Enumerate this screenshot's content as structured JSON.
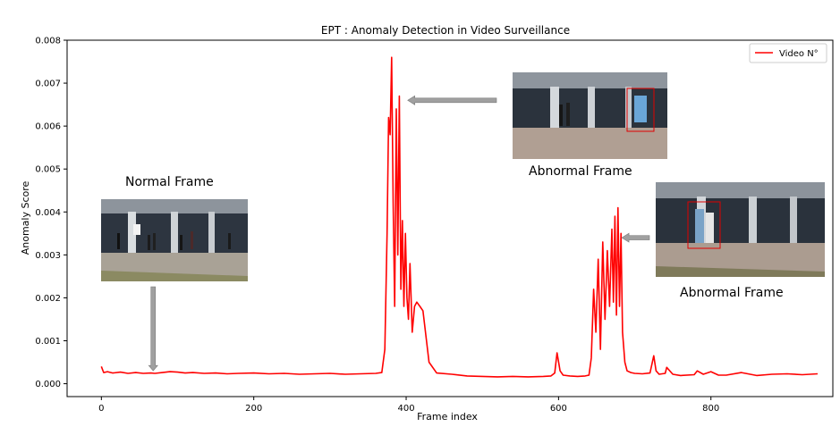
{
  "chart_data": {
    "type": "line",
    "title": "EPT : Anomaly Detection in Video Surveillance",
    "xlabel": "Frame index",
    "ylabel": "Anomaly Score",
    "xlim": [
      -45,
      960
    ],
    "ylim": [
      -0.0003,
      0.008
    ],
    "xticks": [
      0,
      200,
      400,
      600,
      800
    ],
    "yticks": [
      0.0,
      0.001,
      0.002,
      0.003,
      0.004,
      0.005,
      0.006,
      0.007,
      0.008
    ],
    "xtick_labels": [
      "0",
      "200",
      "400",
      "600",
      "800"
    ],
    "ytick_labels": [
      "0.000",
      "0.001",
      "0.002",
      "0.003",
      "0.004",
      "0.005",
      "0.006",
      "0.007",
      "0.008"
    ],
    "grid": false,
    "legend": "top-right",
    "colors": {
      "series": "#ff0000",
      "arrow": "#a0a0a0"
    },
    "series": [
      {
        "name": "Video N°",
        "x": [
          0,
          3,
          8,
          15,
          25,
          35,
          45,
          55,
          65,
          70,
          80,
          90,
          100,
          110,
          120,
          135,
          150,
          165,
          180,
          200,
          220,
          240,
          260,
          280,
          300,
          320,
          340,
          360,
          368,
          372,
          375,
          377,
          379,
          381,
          383,
          385,
          387,
          389,
          391,
          393,
          395,
          397,
          399,
          401,
          403,
          405,
          408,
          411,
          414,
          418,
          422,
          430,
          440,
          460,
          480,
          500,
          520,
          540,
          560,
          580,
          590,
          595,
          598,
          602,
          606,
          615,
          625,
          635,
          640,
          643,
          646,
          649,
          652,
          655,
          658,
          661,
          664,
          667,
          670,
          672,
          674,
          676,
          678,
          680,
          682,
          684,
          687,
          690,
          695,
          700,
          710,
          720,
          725,
          728,
          732,
          740,
          742,
          750,
          760,
          778,
          782,
          790,
          800,
          810,
          820,
          840,
          860,
          880,
          900,
          920,
          940
        ],
        "y": [
          0.0004,
          0.00026,
          0.00028,
          0.00025,
          0.00027,
          0.00024,
          0.00026,
          0.00024,
          0.00025,
          0.00024,
          0.00026,
          0.00028,
          0.00027,
          0.00025,
          0.00026,
          0.00024,
          0.00025,
          0.00023,
          0.00024,
          0.00025,
          0.00023,
          0.00024,
          0.00022,
          0.00023,
          0.00024,
          0.00022,
          0.00023,
          0.00024,
          0.00026,
          0.0008,
          0.0035,
          0.0062,
          0.0058,
          0.0076,
          0.0042,
          0.0018,
          0.0064,
          0.003,
          0.0067,
          0.0022,
          0.0038,
          0.0018,
          0.0035,
          0.002,
          0.0015,
          0.0028,
          0.0012,
          0.0018,
          0.0019,
          0.0018,
          0.0017,
          0.0005,
          0.00025,
          0.00022,
          0.00018,
          0.00017,
          0.00016,
          0.00017,
          0.00016,
          0.00017,
          0.00018,
          0.00025,
          0.00072,
          0.0003,
          0.0002,
          0.00018,
          0.00017,
          0.00018,
          0.0002,
          0.0006,
          0.0022,
          0.0012,
          0.0029,
          0.0008,
          0.0033,
          0.0015,
          0.0031,
          0.0018,
          0.0036,
          0.0019,
          0.0039,
          0.0016,
          0.0041,
          0.0018,
          0.0035,
          0.0012,
          0.0005,
          0.0003,
          0.00026,
          0.00024,
          0.00023,
          0.00025,
          0.00065,
          0.0003,
          0.00022,
          0.00024,
          0.00038,
          0.00022,
          0.00019,
          0.00021,
          0.0003,
          0.00022,
          0.00028,
          0.0002,
          0.0002,
          0.00026,
          0.00019,
          0.00022,
          0.00023,
          0.00021,
          0.00023
        ]
      }
    ],
    "annotations": [
      {
        "label": "Normal Frame",
        "frame": 68,
        "score": 0.0003
      },
      {
        "label": "Abnormal Frame",
        "frame": 402,
        "score": 0.0066
      },
      {
        "label": "Abnormal Frame",
        "frame": 683,
        "score": 0.0034
      }
    ]
  }
}
